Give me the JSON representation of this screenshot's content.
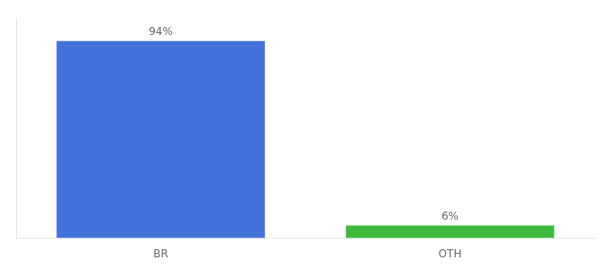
{
  "chart_data": {
    "type": "bar",
    "categories": [
      "BR",
      "OTH"
    ],
    "values": [
      94,
      6
    ],
    "value_labels": [
      "94%",
      "6%"
    ],
    "colors": [
      "#4472db",
      "#3dba3d"
    ],
    "ylim": [
      0,
      105
    ],
    "data_labels": true,
    "tick_labels": "x",
    "grid": false
  }
}
